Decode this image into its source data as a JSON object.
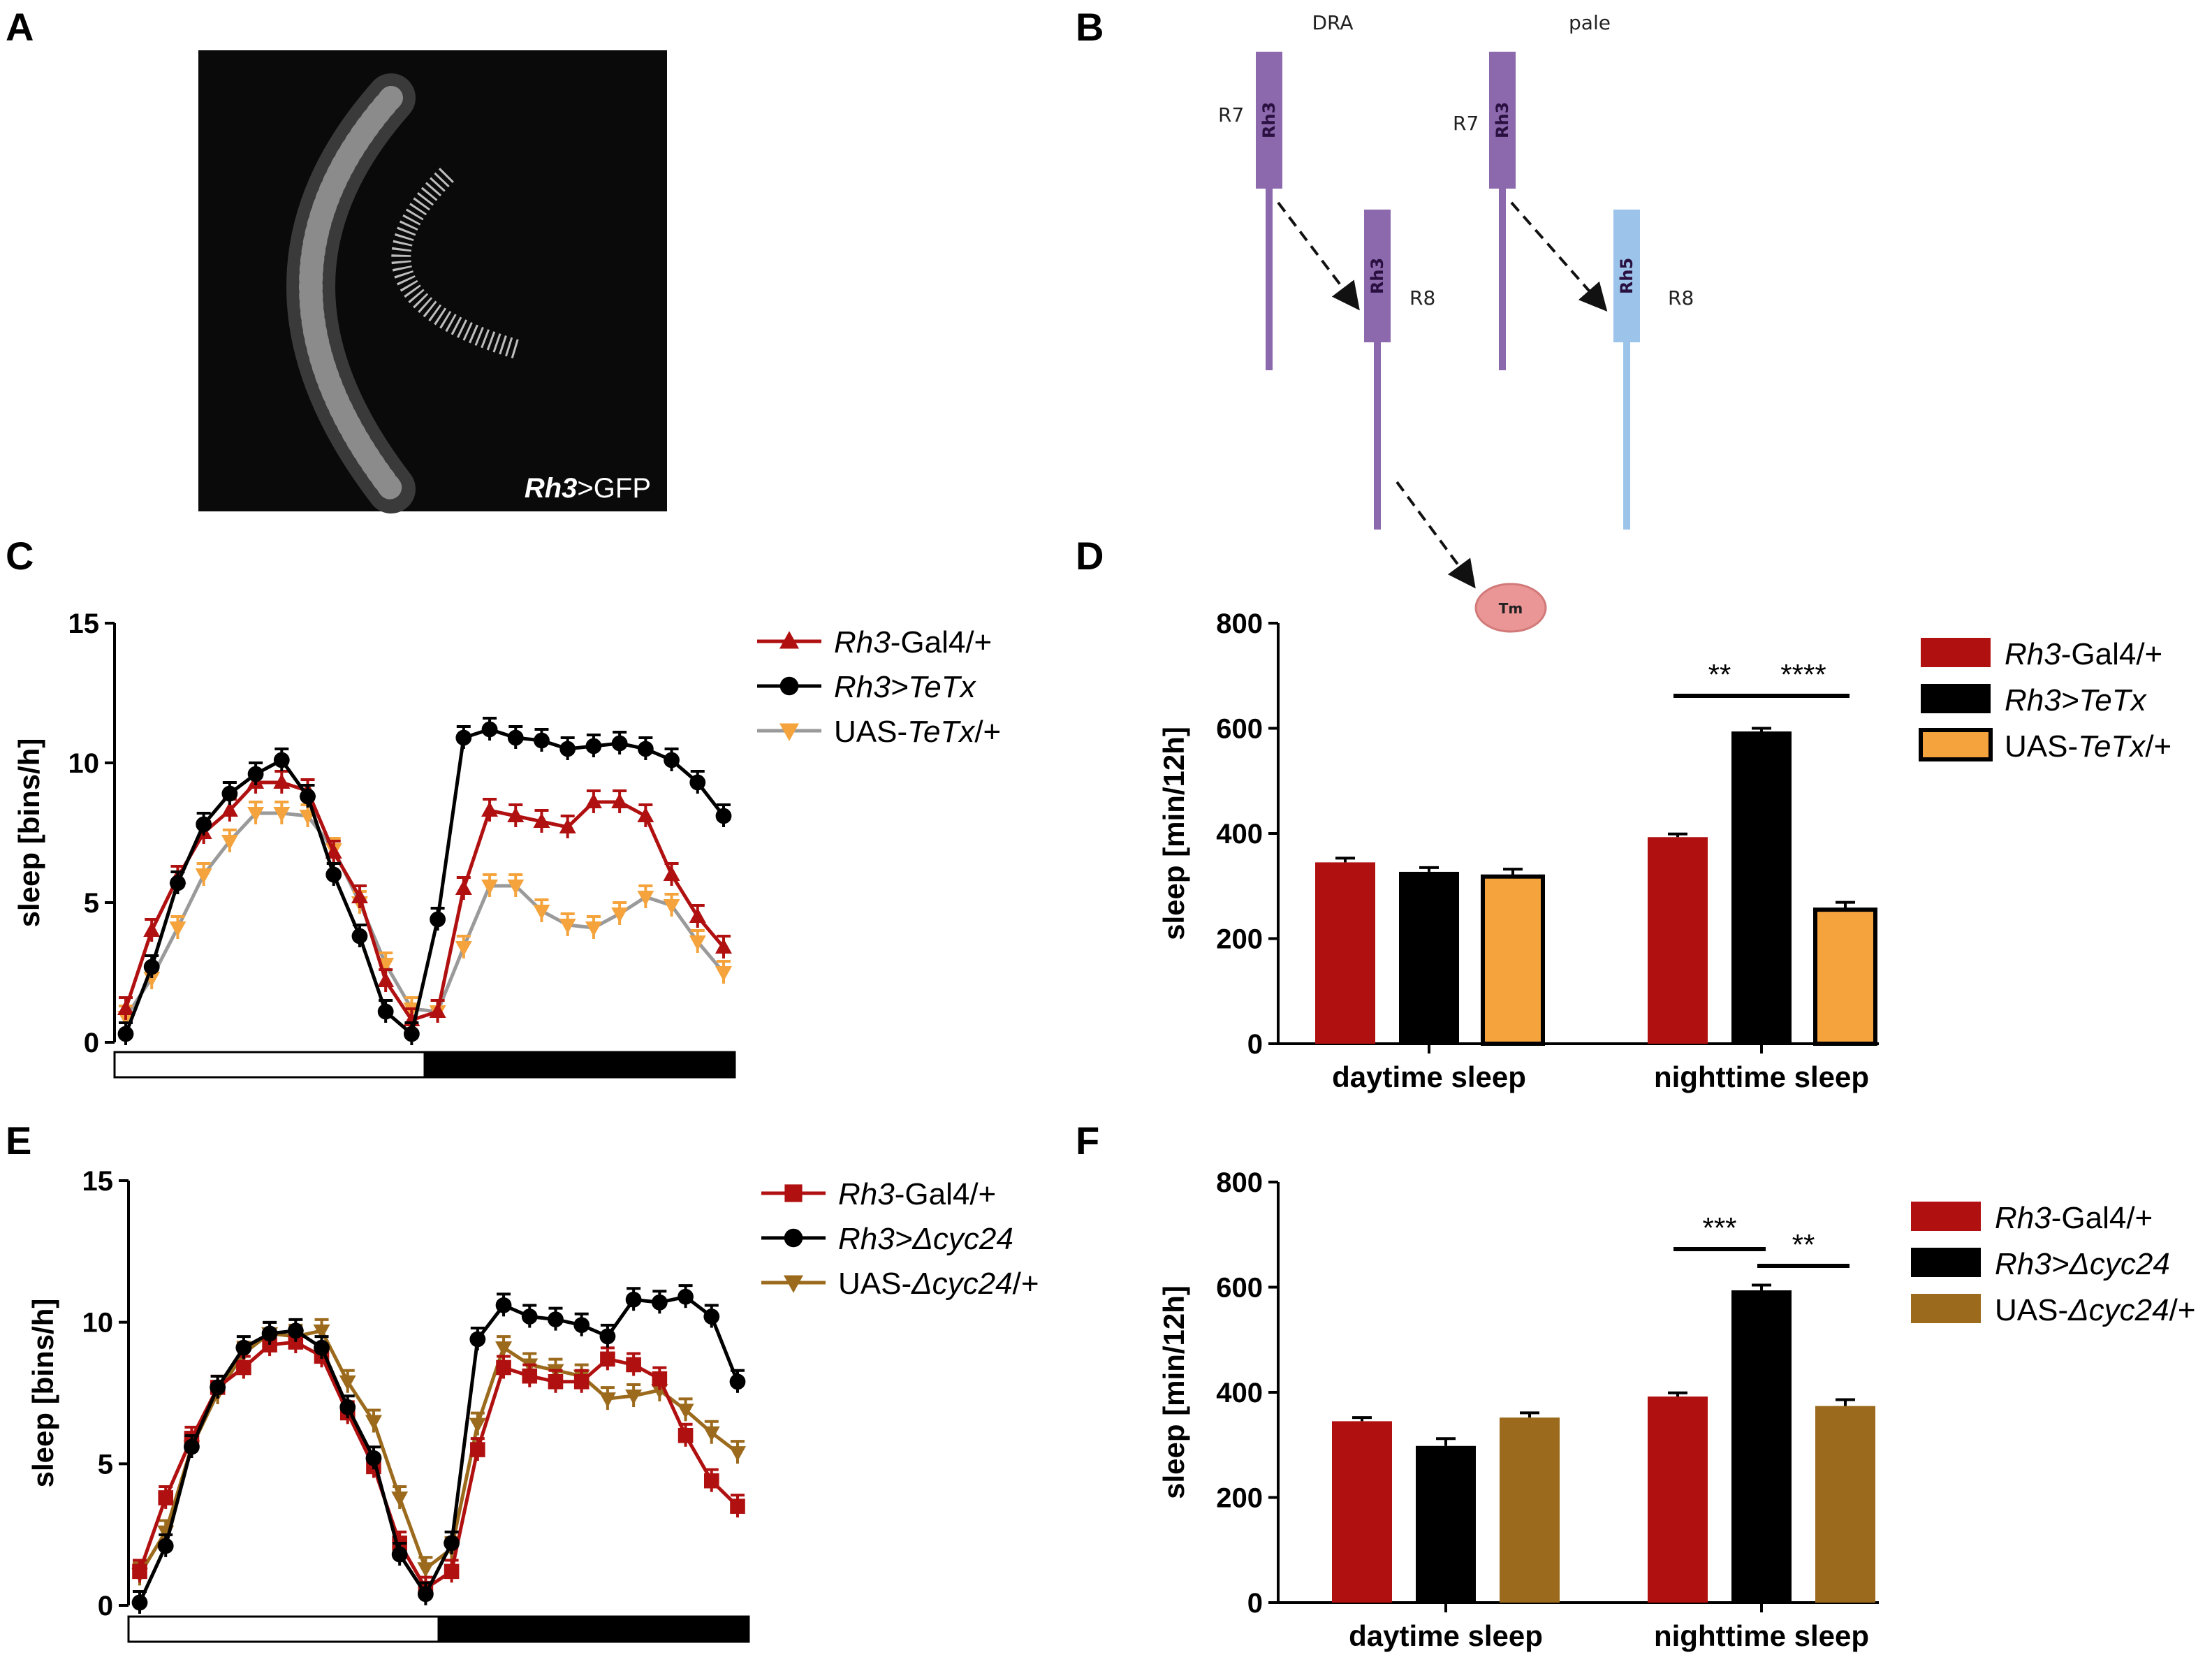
{
  "panel_labels": {
    "A": "A",
    "B": "B",
    "C": "C",
    "D": "D",
    "E": "E",
    "F": "F"
  },
  "colors": {
    "rh3_gal4": "#b01010",
    "rh3_effector": "#000000",
    "uas_tetx": "#f5a33c",
    "uas_tetx_line": "#9a9a9a",
    "uas_cyc": "#9b6a1c",
    "rh3": "#8c68ad",
    "rh5": "#9cc4ea",
    "tm": "#eb9696"
  },
  "panel_a": {
    "label_italic": "Rh3",
    "label_rest": ">GFP"
  },
  "panel_b": {
    "titles": [
      "DRA",
      "pale"
    ],
    "r7": "R7",
    "r8": "R8",
    "rh3": "Rh3",
    "rh5": "Rh5",
    "tm": "Tm"
  },
  "chart_data": [
    {
      "panel": "C",
      "type": "line",
      "ylabel": "sleep [bins/h]",
      "ylim": [
        0,
        15
      ],
      "yticks": [
        0,
        5,
        10,
        15
      ],
      "light_bar": "light phase (white) then dark phase (black)",
      "x": [
        1,
        2,
        3,
        4,
        5,
        6,
        7,
        8,
        9,
        10,
        11,
        12,
        13,
        14,
        15,
        16,
        17,
        18,
        19,
        20,
        21,
        22,
        23,
        24
      ],
      "series": [
        {
          "name": "Rh3-Gal4/+",
          "legend_italic": "Rh3",
          "legend_rest": "-Gal4/+",
          "marker": "triangle-up",
          "color": "#b01010",
          "values": [
            1.2,
            4.0,
            5.9,
            7.5,
            8.3,
            9.3,
            9.3,
            9.0,
            6.8,
            5.2,
            2.2,
            0.8,
            1.1,
            5.5,
            8.3,
            8.1,
            7.9,
            7.7,
            8.6,
            8.6,
            8.1,
            6.0,
            4.5,
            3.4
          ]
        },
        {
          "name": "Rh3>TeTx",
          "legend_italic": "Rh3>TeTx",
          "legend_rest": "",
          "marker": "circle",
          "color": "#000000",
          "values": [
            0.3,
            2.7,
            5.7,
            7.8,
            8.9,
            9.6,
            10.1,
            8.8,
            6.0,
            3.8,
            1.1,
            0.3,
            4.4,
            10.9,
            11.2,
            10.9,
            10.8,
            10.5,
            10.6,
            10.7,
            10.5,
            10.1,
            9.3,
            8.1
          ]
        },
        {
          "name": "UAS-TeTx/+",
          "legend_italic": "TeTx",
          "legend_pre": "UAS-",
          "legend_rest": "/+",
          "marker": "triangle-down",
          "color": "#f5a33c",
          "values": [
            0.9,
            2.3,
            4.1,
            6.0,
            7.2,
            8.2,
            8.2,
            8.1,
            6.9,
            5.0,
            2.8,
            1.2,
            1.1,
            3.4,
            5.6,
            5.6,
            4.7,
            4.2,
            4.1,
            4.6,
            5.2,
            4.9,
            3.6,
            2.5
          ]
        }
      ]
    },
    {
      "panel": "D",
      "type": "bar",
      "ylabel": "sleep [min/12h]",
      "ylim": [
        0,
        800
      ],
      "yticks": [
        0,
        200,
        400,
        600,
        800
      ],
      "categories": [
        "daytime sleep",
        "nighttime sleep"
      ],
      "series": [
        {
          "name": "Rh3-Gal4/+",
          "legend_italic": "Rh3",
          "legend_rest": "-Gal4/+",
          "values": [
            345,
            393
          ],
          "errors": [
            8,
            6
          ]
        },
        {
          "name": "Rh3>TeTx",
          "legend_italic": "Rh3>TeTx",
          "legend_rest": "",
          "values": [
            327,
            594
          ],
          "errors": [
            8,
            6
          ]
        },
        {
          "name": "UAS-TeTx/+",
          "legend_italic": "TeTx",
          "legend_pre": "UAS-",
          "legend_rest": "/+",
          "values": [
            318,
            255
          ],
          "errors": [
            14,
            14
          ]
        }
      ],
      "significance": [
        {
          "label": "**",
          "between": [
            0,
            1
          ]
        },
        {
          "label": "****",
          "between": [
            1,
            2
          ]
        }
      ]
    },
    {
      "panel": "E",
      "type": "line",
      "ylabel": "sleep [bins/h]",
      "ylim": [
        0,
        15
      ],
      "yticks": [
        0,
        5,
        10,
        15
      ],
      "x": [
        1,
        2,
        3,
        4,
        5,
        6,
        7,
        8,
        9,
        10,
        11,
        12,
        13,
        14,
        15,
        16,
        17,
        18,
        19,
        20,
        21,
        22,
        23,
        24
      ],
      "series": [
        {
          "name": "Rh3-Gal4/+",
          "legend_italic": "Rh3",
          "legend_rest": "-Gal4/+",
          "marker": "square",
          "color": "#b01010",
          "values": [
            1.2,
            3.8,
            5.9,
            7.7,
            8.4,
            9.2,
            9.3,
            8.8,
            6.8,
            4.9,
            2.2,
            0.6,
            1.2,
            5.5,
            8.4,
            8.1,
            7.9,
            7.9,
            8.7,
            8.5,
            8.0,
            6.0,
            4.4,
            3.5
          ]
        },
        {
          "name": "Rh3>Δcyc24",
          "legend_italic": "Rh3>Δcyc24",
          "legend_rest": "",
          "marker": "circle",
          "color": "#000000",
          "values": [
            0.1,
            2.1,
            5.6,
            7.7,
            9.1,
            9.6,
            9.7,
            9.1,
            7.0,
            5.2,
            1.8,
            0.4,
            2.2,
            9.4,
            10.6,
            10.2,
            10.1,
            9.9,
            9.5,
            10.8,
            10.7,
            10.9,
            10.2,
            7.9
          ]
        },
        {
          "name": "UAS-Δcyc24/+",
          "legend_italic": "Δcyc24",
          "legend_pre": "UAS-",
          "legend_rest": "/+",
          "marker": "triangle-down",
          "color": "#9b6a1c",
          "values": [
            1.1,
            2.6,
            5.6,
            7.5,
            8.9,
            9.6,
            9.5,
            9.7,
            7.9,
            6.5,
            3.8,
            1.3,
            2.0,
            6.4,
            9.1,
            8.5,
            8.3,
            8.1,
            7.3,
            7.4,
            7.6,
            6.9,
            6.1,
            5.4
          ]
        }
      ]
    },
    {
      "panel": "F",
      "type": "bar",
      "ylabel": "sleep [min/12h]",
      "ylim": [
        0,
        800
      ],
      "yticks": [
        0,
        200,
        400,
        600,
        800
      ],
      "categories": [
        "daytime sleep",
        "nighttime sleep"
      ],
      "series": [
        {
          "name": "Rh3-Gal4/+",
          "legend_italic": "Rh3",
          "legend_rest": "-Gal4/+",
          "values": [
            345,
            392
          ],
          "errors": [
            7,
            7
          ]
        },
        {
          "name": "Rh3>Δcyc24",
          "legend_italic": "Rh3>Δcyc24",
          "legend_rest": "",
          "values": [
            298,
            594
          ],
          "errors": [
            14,
            10
          ]
        },
        {
          "name": "UAS-Δcyc24/+",
          "legend_italic": "Δcyc24",
          "legend_pre": "UAS-",
          "legend_rest": "/+",
          "values": [
            352,
            374
          ],
          "errors": [
            9,
            12
          ]
        }
      ],
      "significance": [
        {
          "label": "***",
          "between": [
            0,
            1
          ]
        },
        {
          "label": "**",
          "between": [
            1,
            2
          ]
        }
      ]
    }
  ]
}
